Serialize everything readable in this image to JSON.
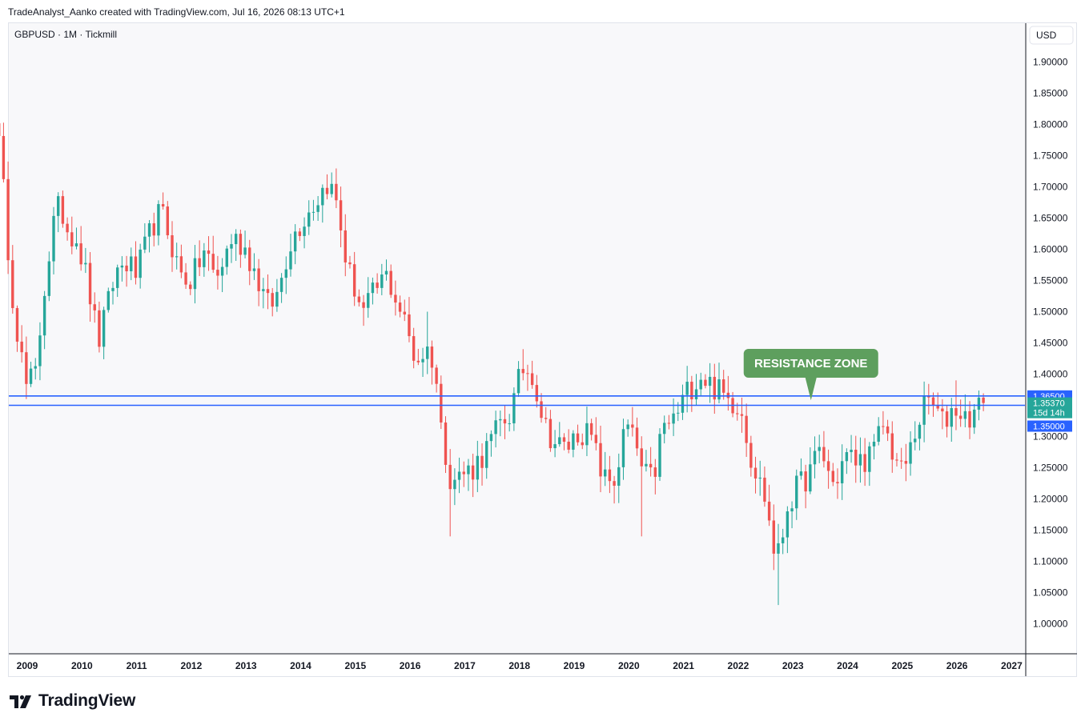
{
  "header": {
    "attribution": "TradeAnalyst_Aanko created with TradingView.com, Jul 16, 2026 08:13 UTC+1"
  },
  "footer": {
    "brand": "TradingView"
  },
  "colors": {
    "up": "#26a69a",
    "down": "#ef5350",
    "level_line": "#2962ff",
    "annotation_bg": "#5e9f5e",
    "price_label_bg": "#26a69a",
    "level_label_bg": "#2962ff",
    "plot_bg": "#f8f8fa"
  },
  "chart_data": {
    "type": "candlestick",
    "title": "GBPUSD · 1M · Tickmill",
    "currency_button": "USD",
    "ylim": [
      0.957,
      1.932
    ],
    "y_ticks": [
      "1.90000",
      "1.85000",
      "1.80000",
      "1.75000",
      "1.70000",
      "1.65000",
      "1.60000",
      "1.55000",
      "1.50000",
      "1.45000",
      "1.40000",
      "1.30000",
      "1.25000",
      "1.20000",
      "1.15000",
      "1.10000",
      "1.05000",
      "1.00000"
    ],
    "x_ticks": [
      "2009",
      "2010",
      "2011",
      "2012",
      "2013",
      "2014",
      "2015",
      "2016",
      "2017",
      "2018",
      "2019",
      "2020",
      "2021",
      "2022",
      "2023",
      "2024",
      "2025",
      "2026",
      "2027"
    ],
    "x_start": 2008.4,
    "x_end": 2026.8,
    "levels": [
      {
        "value": 1.365,
        "label": "1.36500"
      },
      {
        "value": 1.35,
        "label": "1.35000"
      }
    ],
    "last_price": {
      "value": 1.3537,
      "label": "1.35370",
      "countdown": "15d 14h"
    },
    "annotation": {
      "text": "RESISTANCE ZONE",
      "x": 2023.33,
      "y": 1.358
    },
    "anchors": [
      [
        2008.42,
        1.82
      ],
      [
        2008.55,
        1.71
      ],
      [
        2008.7,
        1.55
      ],
      [
        2008.85,
        1.45
      ],
      [
        2008.98,
        1.38
      ],
      [
        2009.15,
        1.4
      ],
      [
        2009.33,
        1.55
      ],
      [
        2009.5,
        1.65
      ],
      [
        2009.6,
        1.67
      ],
      [
        2009.75,
        1.63
      ],
      [
        2009.9,
        1.62
      ],
      [
        2010.1,
        1.55
      ],
      [
        2010.3,
        1.45
      ],
      [
        2010.45,
        1.5
      ],
      [
        2010.6,
        1.56
      ],
      [
        2010.8,
        1.58
      ],
      [
        2011.0,
        1.56
      ],
      [
        2011.3,
        1.64
      ],
      [
        2011.45,
        1.66
      ],
      [
        2011.6,
        1.62
      ],
      [
        2011.8,
        1.56
      ],
      [
        2012.0,
        1.55
      ],
      [
        2012.25,
        1.6
      ],
      [
        2012.45,
        1.55
      ],
      [
        2012.75,
        1.62
      ],
      [
        2013.0,
        1.6
      ],
      [
        2013.4,
        1.51
      ],
      [
        2013.55,
        1.52
      ],
      [
        2013.8,
        1.61
      ],
      [
        2014.05,
        1.65
      ],
      [
        2014.3,
        1.68
      ],
      [
        2014.5,
        1.71
      ],
      [
        2014.67,
        1.67
      ],
      [
        2014.85,
        1.57
      ],
      [
        2015.15,
        1.5
      ],
      [
        2015.35,
        1.53
      ],
      [
        2015.55,
        1.56
      ],
      [
        2015.75,
        1.52
      ],
      [
        2015.95,
        1.47
      ],
      [
        2016.1,
        1.42
      ],
      [
        2016.3,
        1.44
      ],
      [
        2016.45,
        1.42
      ],
      [
        2016.55,
        1.32
      ],
      [
        2016.75,
        1.23
      ],
      [
        2016.95,
        1.24
      ],
      [
        2017.15,
        1.25
      ],
      [
        2017.4,
        1.28
      ],
      [
        2017.65,
        1.32
      ],
      [
        2017.85,
        1.34
      ],
      [
        2018.05,
        1.41
      ],
      [
        2018.25,
        1.4
      ],
      [
        2018.45,
        1.32
      ],
      [
        2018.65,
        1.29
      ],
      [
        2018.85,
        1.28
      ],
      [
        2019.1,
        1.31
      ],
      [
        2019.3,
        1.3
      ],
      [
        2019.55,
        1.23
      ],
      [
        2019.75,
        1.23
      ],
      [
        2019.95,
        1.32
      ],
      [
        2020.15,
        1.28
      ],
      [
        2020.25,
        1.24
      ],
      [
        2020.45,
        1.23
      ],
      [
        2020.6,
        1.31
      ],
      [
        2020.85,
        1.33
      ],
      [
        2021.05,
        1.37
      ],
      [
        2021.3,
        1.4
      ],
      [
        2021.55,
        1.38
      ],
      [
        2021.8,
        1.36
      ],
      [
        2022.05,
        1.35
      ],
      [
        2022.25,
        1.26
      ],
      [
        2022.5,
        1.2
      ],
      [
        2022.65,
        1.12
      ],
      [
        2022.75,
        1.11
      ],
      [
        2022.9,
        1.19
      ],
      [
        2023.1,
        1.22
      ],
      [
        2023.3,
        1.24
      ],
      [
        2023.5,
        1.28
      ],
      [
        2023.75,
        1.22
      ],
      [
        2023.95,
        1.27
      ],
      [
        2024.2,
        1.26
      ],
      [
        2024.45,
        1.27
      ],
      [
        2024.65,
        1.32
      ],
      [
        2024.85,
        1.27
      ],
      [
        2025.0,
        1.24
      ],
      [
        2025.15,
        1.28
      ],
      [
        2025.35,
        1.34
      ],
      [
        2025.5,
        1.36
      ],
      [
        2025.75,
        1.32
      ],
      [
        2025.95,
        1.35
      ],
      [
        2026.15,
        1.33
      ],
      [
        2026.35,
        1.34
      ],
      [
        2026.5,
        1.354
      ]
    ],
    "spikes": [
      {
        "x": 2008.42,
        "high": 1.87,
        "low": 1.74
      },
      {
        "x": 2008.95,
        "high": 1.41,
        "low": 1.36
      },
      {
        "x": 2016.75,
        "high": 1.28,
        "low": 1.14
      },
      {
        "x": 2020.2,
        "high": 1.3,
        "low": 1.14
      },
      {
        "x": 2022.73,
        "high": 1.16,
        "low": 1.03
      },
      {
        "x": 2026.0,
        "high": 1.39,
        "low": 1.33
      },
      {
        "x": 2014.5,
        "high": 1.72,
        "low": 1.68
      },
      {
        "x": 2018.1,
        "high": 1.44,
        "low": 1.39
      },
      {
        "x": 2016.35,
        "high": 1.5,
        "low": 1.4
      }
    ]
  }
}
